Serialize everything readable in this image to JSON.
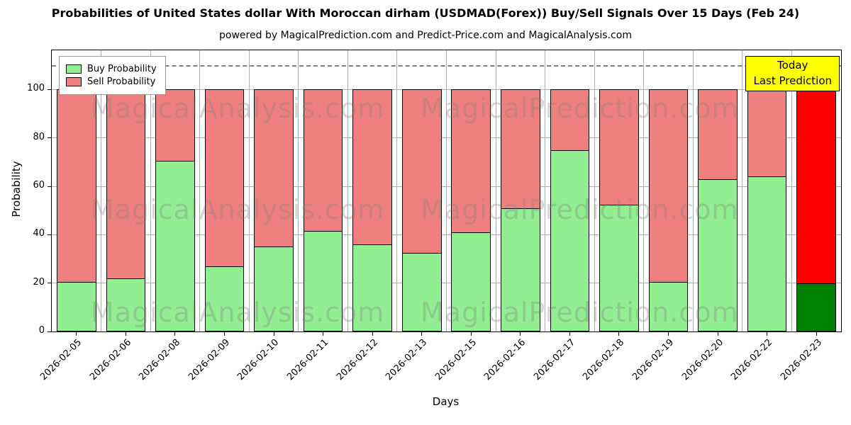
{
  "chart": {
    "title": "Probabilities of United States dollar With Moroccan dirham (USDMAD(Forex)) Buy/Sell Signals Over 15 Days (Feb 24)",
    "subtitle": "powered by MagicalPrediction.com and Predict-Price.com and MagicalAnalysis.com",
    "xlabel": "Days",
    "ylabel": "Probability",
    "watermarks": [
      "MagicalAnalysis.com",
      "MagicalPrediction.com"
    ],
    "legend": {
      "buy_label": "Buy Probability",
      "sell_label": "Sell Probability"
    },
    "annotation_box": {
      "line1": "Today",
      "line2": "Last Prediction",
      "bg_color": "#ffff00"
    }
  },
  "chart_data": {
    "type": "bar",
    "stacked": true,
    "title": "Probabilities of United States dollar With Moroccan dirham (USDMAD(Forex)) Buy/Sell Signals Over 15 Days (Feb 24)",
    "xlabel": "Days",
    "ylabel": "Probability",
    "categories": [
      "2026-02-05",
      "2026-02-06",
      "2026-02-08",
      "2026-02-09",
      "2026-02-10",
      "2026-02-11",
      "2026-02-12",
      "2026-02-13",
      "2026-02-15",
      "2026-02-16",
      "2026-02-17",
      "2026-02-18",
      "2026-02-19",
      "2026-02-20",
      "2026-02-22",
      "2026-02-23"
    ],
    "series": [
      {
        "name": "Buy Probability",
        "color": "#90ee90",
        "values": [
          20.5,
          22,
          70.5,
          27,
          35,
          41.5,
          36,
          32.5,
          41,
          51,
          75,
          52.5,
          20.5,
          63,
          64,
          20
        ]
      },
      {
        "name": "Sell Probability",
        "color": "#f08080",
        "values": [
          79.5,
          78,
          29.5,
          73,
          65,
          58.5,
          64,
          67.5,
          59,
          49,
          25,
          47.5,
          79.5,
          37,
          36,
          80
        ]
      }
    ],
    "today_bar": {
      "category": "2026-02-23",
      "buy_color": "#008000",
      "sell_color": "#ff0000"
    },
    "yticks": [
      0,
      20,
      40,
      60,
      80,
      100
    ],
    "ylim": [
      0,
      116.2
    ],
    "dashed_line_y": 110,
    "grid": true,
    "grid_color": "#b0b0b0",
    "legend_position": "upper left"
  }
}
